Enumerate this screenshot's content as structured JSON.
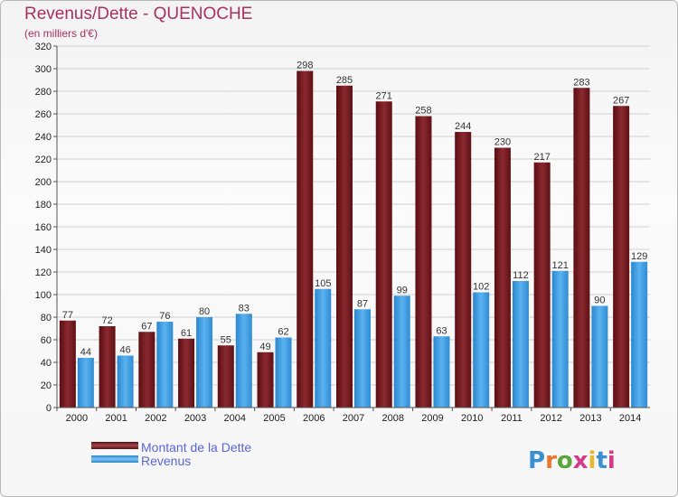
{
  "title": "Revenus/Dette - QUENOCHE",
  "subtitle": "(en milliers d'€)",
  "logo": {
    "text": "Proxiti"
  },
  "colors": {
    "debt": "#7a1a1f",
    "revenue": "#3f9ee3",
    "title": "#a8315f",
    "legend_text": "#5b64d8"
  },
  "chart_data": {
    "type": "bar",
    "title": "Revenus/Dette - QUENOCHE",
    "subtitle": "(en milliers d'€)",
    "categories": [
      "2000",
      "2001",
      "2002",
      "2003",
      "2004",
      "2005",
      "2006",
      "2007",
      "2008",
      "2009",
      "2010",
      "2011",
      "2012",
      "2013",
      "2014"
    ],
    "series": [
      {
        "name": "Montant de la Dette",
        "values": [
          77,
          72,
          67,
          61,
          55,
          49,
          298,
          285,
          271,
          258,
          244,
          230,
          217,
          283,
          267
        ]
      },
      {
        "name": "Revenus",
        "values": [
          44,
          46,
          76,
          80,
          83,
          62,
          105,
          87,
          99,
          63,
          102,
          112,
          121,
          90,
          129
        ]
      }
    ],
    "ylim": [
      0,
      320
    ],
    "yticks": [
      0,
      20,
      40,
      60,
      80,
      100,
      120,
      140,
      160,
      180,
      200,
      220,
      240,
      260,
      280,
      300,
      320
    ],
    "grid": true,
    "legend_position": "bottom-left"
  }
}
